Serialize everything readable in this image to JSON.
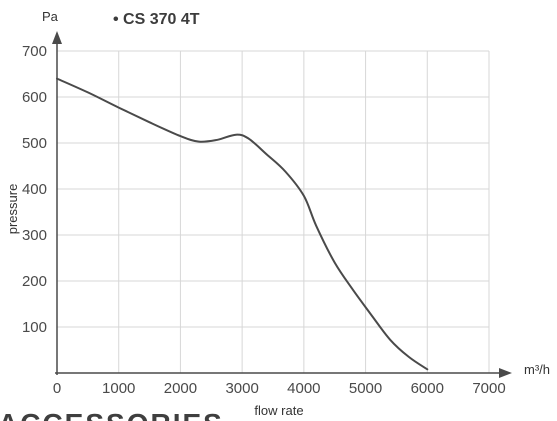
{
  "chart_data": {
    "type": "line",
    "title": "",
    "legend": "• CS 370 4T",
    "xlabel": "flow rate",
    "ylabel": "pressure",
    "x_unit": "m³/h",
    "y_unit": "Pa",
    "xlim": [
      0,
      7000
    ],
    "ylim": [
      0,
      700
    ],
    "x_ticks": [
      0,
      1000,
      2000,
      3000,
      4000,
      5000,
      6000,
      7000
    ],
    "y_ticks": [
      100,
      200,
      300,
      400,
      500,
      600,
      700
    ],
    "grid": true,
    "series": [
      {
        "name": "CS 370 4T",
        "x": [
          0,
          500,
          1000,
          1500,
          2000,
          2300,
          2600,
          2900,
          3100,
          3400,
          3700,
          4000,
          4200,
          4500,
          4800,
          5100,
          5400,
          5700,
          6000
        ],
        "y": [
          640,
          610,
          577,
          545,
          515,
          503,
          507,
          518,
          510,
          475,
          438,
          385,
          320,
          240,
          180,
          125,
          72,
          35,
          8
        ]
      }
    ]
  },
  "cutoff_text": "ACCESSORIES",
  "colors": {
    "line": "#4a4a4a",
    "grid": "#d7d7d7",
    "axis": "#4a4a4a"
  }
}
